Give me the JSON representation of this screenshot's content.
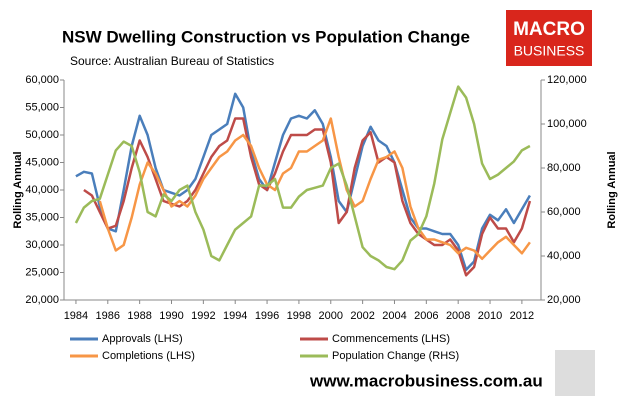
{
  "chart_data": {
    "type": "line",
    "title": "NSW Dwelling Construction vs Population Change",
    "subtitle": "Source: Australian Bureau of Statistics",
    "y_label": "Rolling Annual",
    "y2_label": "Rolling Annual",
    "x": [
      1984,
      1984.5,
      1985,
      1985.5,
      1986,
      1986.5,
      1987,
      1987.5,
      1988,
      1988.5,
      1989,
      1989.5,
      1990,
      1990.5,
      1991,
      1991.5,
      1992,
      1992.5,
      1993,
      1993.5,
      1994,
      1994.5,
      1995,
      1995.5,
      1996,
      1996.5,
      1997,
      1997.5,
      1998,
      1998.5,
      1999,
      1999.5,
      2000,
      2000.5,
      2001,
      2001.5,
      2002,
      2002.5,
      2003,
      2003.5,
      2004,
      2004.5,
      2005,
      2005.5,
      2006,
      2006.5,
      2007,
      2007.5,
      2008,
      2008.5,
      2009,
      2009.5,
      2010,
      2010.5,
      2011,
      2011.5,
      2012,
      2012.5
    ],
    "series": [
      {
        "name": "Approvals (LHS)",
        "color": "#4a7ebb",
        "values": [
          42500,
          43300,
          43000,
          37000,
          33000,
          32500,
          40000,
          48000,
          53500,
          50000,
          44000,
          40000,
          39500,
          39000,
          40000,
          42000,
          46000,
          50000,
          51000,
          52000,
          57500,
          55000,
          47000,
          42000,
          40000,
          45000,
          50000,
          53000,
          53500,
          53000,
          54500,
          52000,
          46000,
          38000,
          36000,
          42000,
          48000,
          51500,
          49000,
          48000,
          45000,
          40000,
          35000,
          33000,
          33000,
          32500,
          32000,
          32000,
          30000,
          25500,
          27000,
          33000,
          35500,
          34500,
          36500,
          34000,
          36500,
          39000
        ]
      },
      {
        "name": "Commencements (LHS)",
        "color": "#be4b48",
        "values": [
          null,
          40000,
          39000,
          36000,
          33000,
          33500,
          38000,
          44000,
          49000,
          46000,
          42000,
          38000,
          37500,
          37000,
          38000,
          40000,
          43000,
          46000,
          48000,
          49000,
          53000,
          53000,
          46000,
          41000,
          40000,
          43000,
          47000,
          50000,
          50000,
          50000,
          51000,
          51000,
          45000,
          34000,
          36000,
          44000,
          49000,
          50500,
          45000,
          46000,
          45000,
          38000,
          34000,
          32000,
          31000,
          30000,
          30000,
          31000,
          29000,
          24500,
          26000,
          32000,
          35000,
          33000,
          33000,
          30500,
          33000,
          38000
        ]
      },
      {
        "name": "Completions (LHS)",
        "color": "#f79646",
        "values": [
          null,
          null,
          null,
          38000,
          33000,
          29000,
          30000,
          35000,
          41000,
          45000,
          43000,
          40000,
          37000,
          38000,
          37000,
          39000,
          42000,
          44000,
          46000,
          47000,
          49000,
          50000,
          48000,
          44000,
          41000,
          40000,
          43000,
          44000,
          47000,
          47000,
          48000,
          49000,
          53000,
          46000,
          40000,
          37000,
          38000,
          42000,
          45500,
          46000,
          47000,
          44000,
          37000,
          33000,
          31000,
          31000,
          30500,
          30000,
          28500,
          29500,
          29000,
          27500,
          29000,
          30500,
          31500,
          30000,
          28500,
          30500
        ]
      },
      {
        "name": "Population Change (RHS)",
        "color": "#9bbb59",
        "axis": "y2",
        "values": [
          55000,
          62000,
          65000,
          66000,
          77000,
          88000,
          92000,
          90000,
          78000,
          60000,
          58000,
          68000,
          65000,
          70000,
          72000,
          60000,
          52000,
          40000,
          38000,
          45000,
          52000,
          55000,
          58000,
          72000,
          72000,
          75000,
          62000,
          62000,
          67000,
          70000,
          71000,
          72000,
          80000,
          82000,
          72000,
          58000,
          44000,
          40000,
          38000,
          35000,
          34000,
          38000,
          47000,
          50000,
          58000,
          73000,
          93000,
          105000,
          117000,
          112000,
          100000,
          82000,
          75000,
          77000,
          80000,
          83000,
          88000,
          90000
        ]
      }
    ],
    "xlim": [
      1983.25,
      2013.2
    ],
    "xticks": [
      1984,
      1986,
      1988,
      1990,
      1992,
      1994,
      1996,
      1998,
      2000,
      2002,
      2004,
      2006,
      2008,
      2010,
      2012
    ],
    "ylim": [
      20000,
      60000
    ],
    "yticks": [
      {
        "value": 20000,
        "label": "20,000"
      },
      {
        "value": 25000,
        "label": "25,000"
      },
      {
        "value": 30000,
        "label": "30,000"
      },
      {
        "value": 35000,
        "label": "35,000"
      },
      {
        "value": 40000,
        "label": "40,000"
      },
      {
        "value": 45000,
        "label": "45,000"
      },
      {
        "value": 50000,
        "label": "50,000"
      },
      {
        "value": 55000,
        "label": "55,000"
      },
      {
        "value": 60000,
        "label": "60,000"
      }
    ],
    "y2lim": [
      20000,
      120000
    ],
    "y2ticks": [
      {
        "value": 20000,
        "label": "20,000"
      },
      {
        "value": 40000,
        "label": "40,000"
      },
      {
        "value": 60000,
        "label": "60,000"
      },
      {
        "value": 80000,
        "label": "80,000"
      },
      {
        "value": 100000,
        "label": "100,000"
      },
      {
        "value": 120000,
        "label": "120,000"
      }
    ],
    "grid": false,
    "legend": "bottom"
  },
  "branding": {
    "logo_line1": "MACRO",
    "logo_line2": "BUSINESS",
    "website": "www.macrobusiness.com.au"
  }
}
